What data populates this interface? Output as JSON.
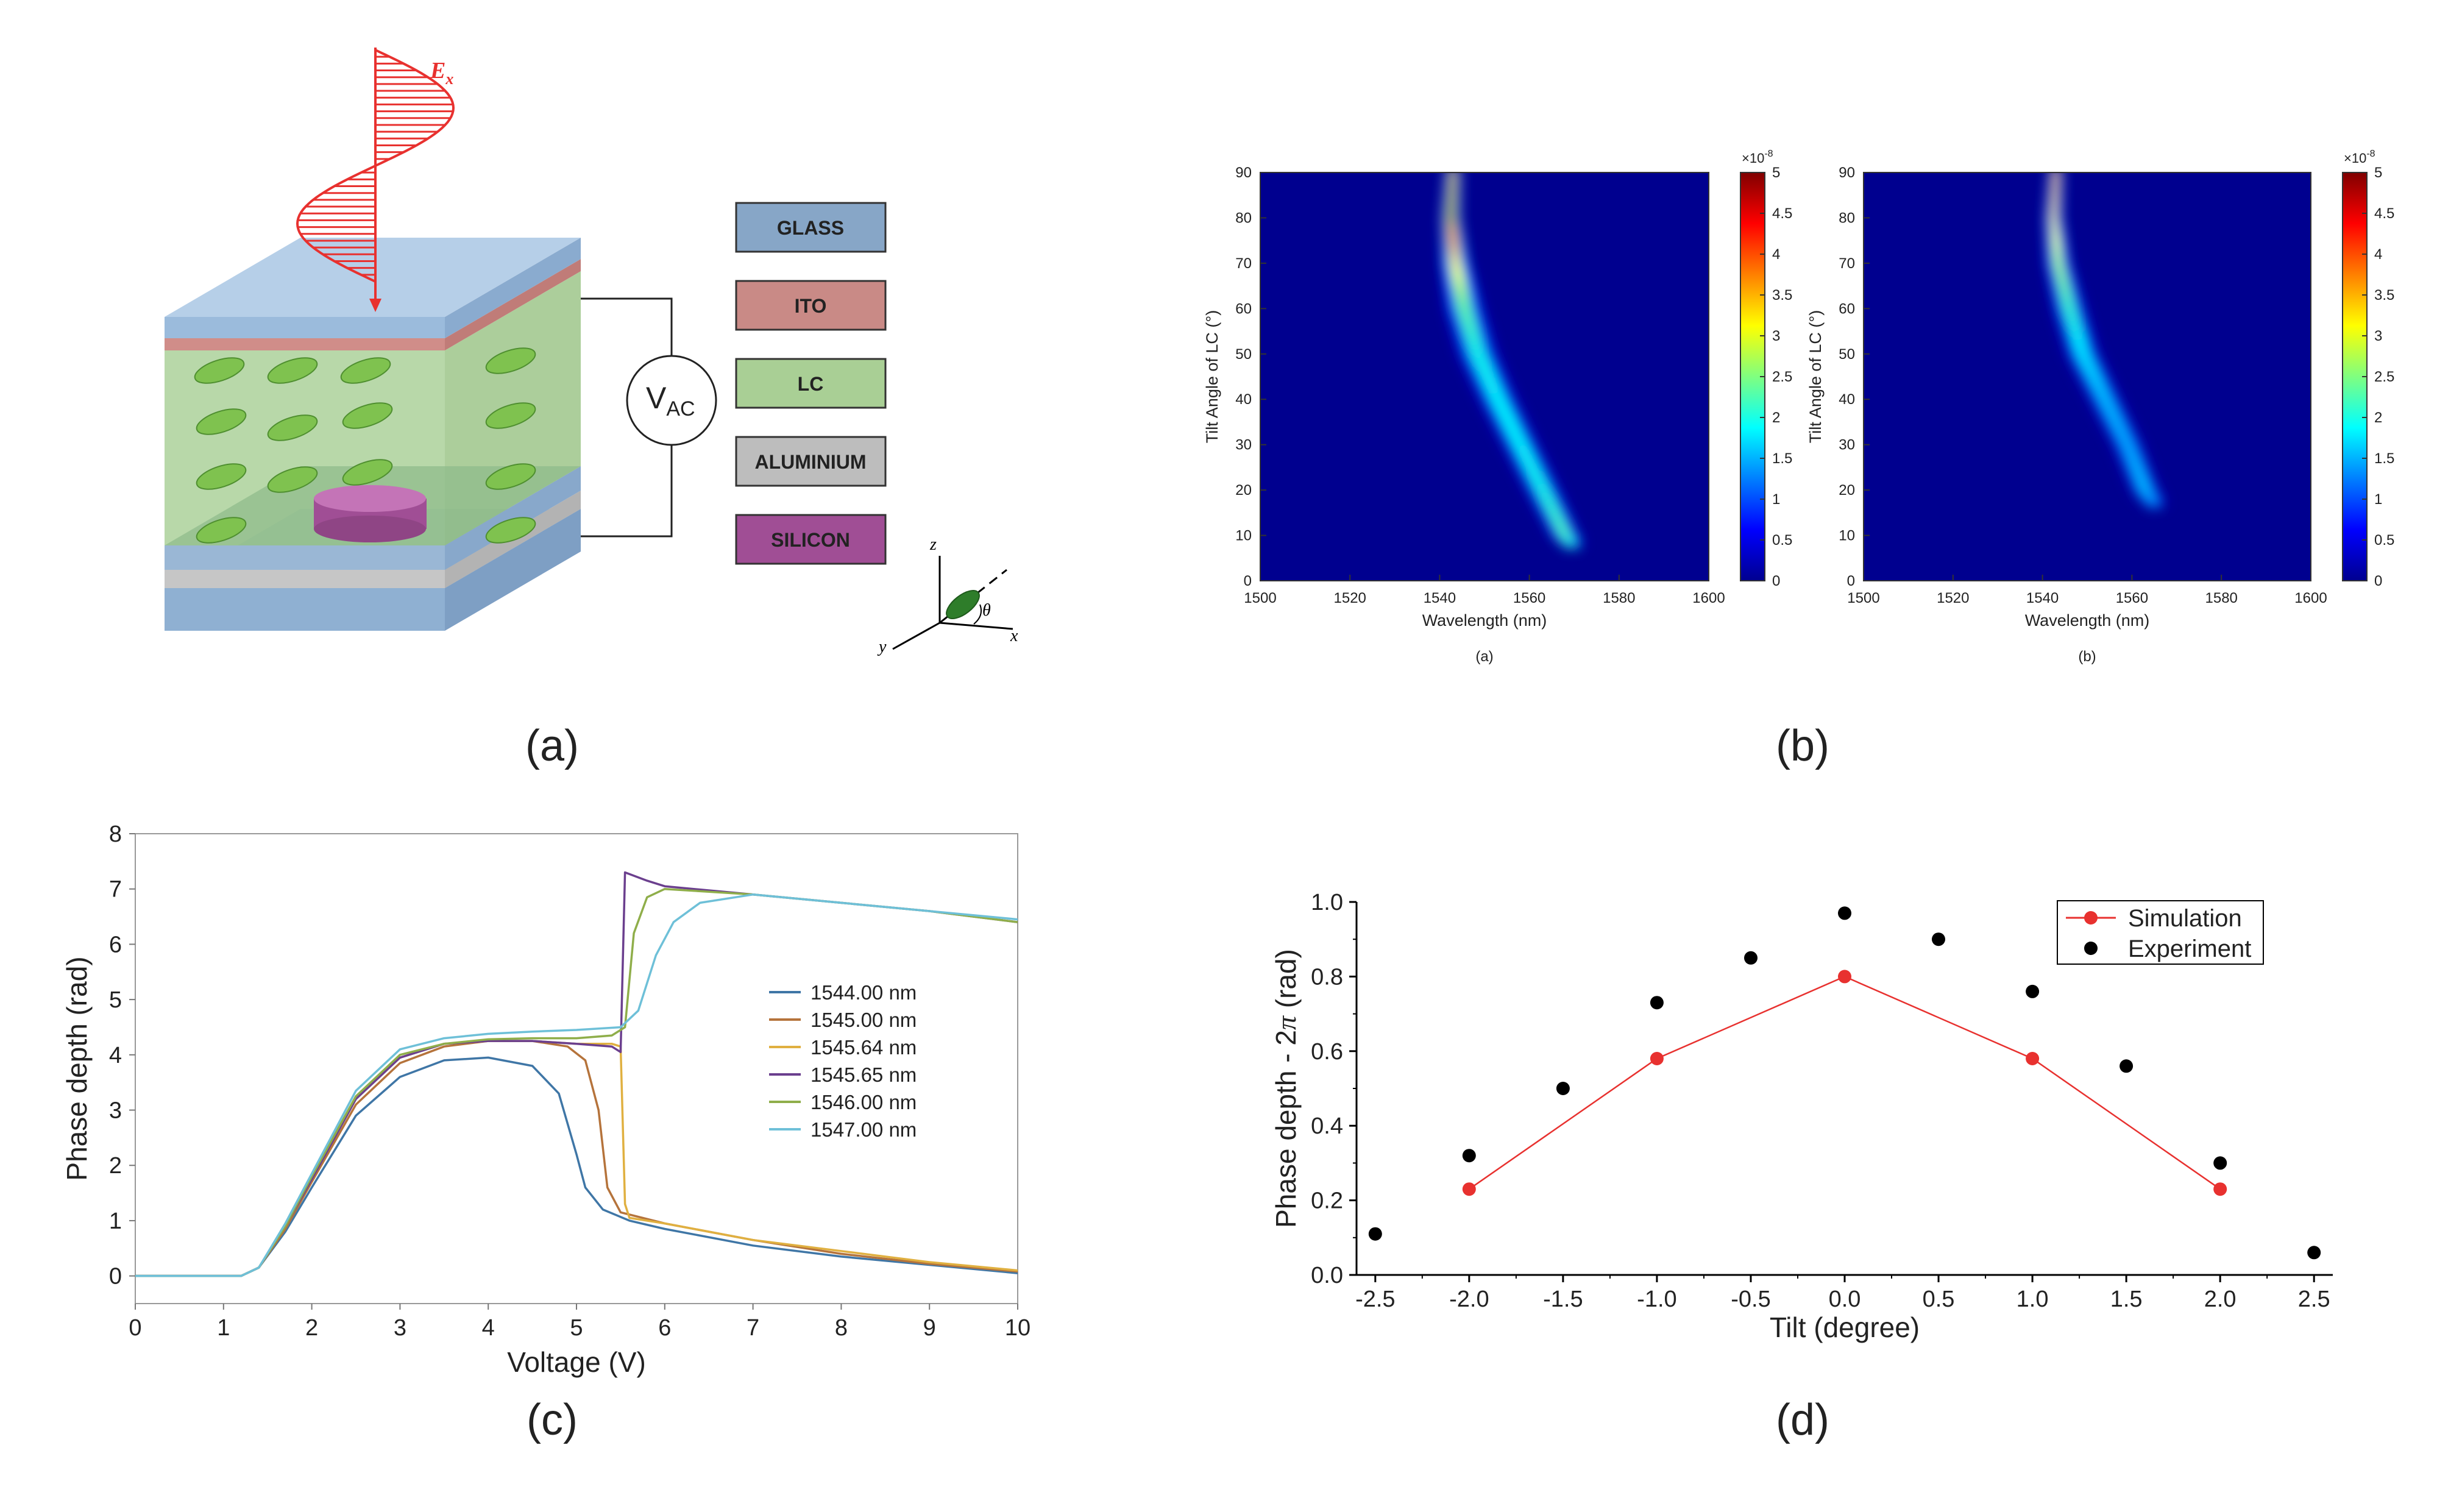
{
  "panel_labels": [
    "(a)",
    "(b)",
    "(c)",
    "(d)"
  ],
  "schematic": {
    "field_label": "E",
    "field_subscript": "x",
    "voltage_label": "V",
    "voltage_subscript": "AC",
    "legend": [
      {
        "label": "GLASS",
        "color": "#87a6c7"
      },
      {
        "label": "ITO",
        "color": "#c98a86"
      },
      {
        "label": "LC",
        "color": "#a9cf95"
      },
      {
        "label": "ALUMINIUM",
        "color": "#bdbdbd"
      },
      {
        "label": "SILICON",
        "color": "#a04e95"
      }
    ],
    "axes": {
      "z": "z",
      "x": "x",
      "y": "y",
      "theta": "θ"
    }
  },
  "chart_data": [
    {
      "id": "b-a",
      "type": "heatmap",
      "caption": "(a)",
      "xlabel": "Wavelength (nm)",
      "ylabel": "Tilt Angle of LC (°)",
      "xlim": [
        1500,
        1600
      ],
      "ylim": [
        0,
        90
      ],
      "xticks": [
        1500,
        1520,
        1540,
        1560,
        1580,
        1600
      ],
      "yticks": [
        0,
        10,
        20,
        30,
        40,
        50,
        60,
        70,
        80,
        90
      ],
      "colorbar": {
        "ticks": [
          "0",
          "0.5",
          "1",
          "1.5",
          "2",
          "2.5",
          "3",
          "3.5",
          "4",
          "4.5",
          "5"
        ],
        "multiplier_base": "×10",
        "multiplier_exp": "-8",
        "max": 5
      },
      "ridge": [
        {
          "y": 90,
          "x": 1543,
          "value": 4.6,
          "width": 1.8
        },
        {
          "y": 80,
          "x": 1542.5,
          "value": 4.9,
          "width": 2.2
        },
        {
          "y": 70,
          "x": 1543.5,
          "value": 3.4,
          "width": 3.2
        },
        {
          "y": 60,
          "x": 1545.5,
          "value": 2.4,
          "width": 4.2
        },
        {
          "y": 50,
          "x": 1548.5,
          "value": 2.0,
          "width": 4.4
        },
        {
          "y": 40,
          "x": 1553,
          "value": 1.9,
          "width": 4.2
        },
        {
          "y": 30,
          "x": 1558,
          "value": 1.9,
          "width": 4.0
        },
        {
          "y": 20,
          "x": 1563,
          "value": 2.0,
          "width": 3.8
        },
        {
          "y": 10,
          "x": 1568,
          "value": 2.3,
          "width": 3.2
        },
        {
          "y": 8,
          "x": 1569.5,
          "value": 2.0,
          "width": 2.6
        }
      ]
    },
    {
      "id": "b-b",
      "type": "heatmap",
      "caption": "(b)",
      "xlabel": "Wavelength (nm)",
      "ylabel": "Tilt Angle of LC (°)",
      "xlim": [
        1500,
        1600
      ],
      "ylim": [
        0,
        90
      ],
      "xticks": [
        1500,
        1520,
        1540,
        1560,
        1580,
        1600
      ],
      "yticks": [
        0,
        10,
        20,
        30,
        40,
        50,
        60,
        70,
        80,
        90
      ],
      "colorbar": {
        "ticks": [
          "0",
          "0.5",
          "1",
          "1.5",
          "2",
          "2.5",
          "3",
          "3.5",
          "4",
          "4.5",
          "5"
        ],
        "multiplier_base": "×10",
        "multiplier_exp": "-8",
        "max": 5
      },
      "ridge": [
        {
          "y": 90,
          "x": 1543,
          "value": 4.3,
          "width": 1.6
        },
        {
          "y": 80,
          "x": 1542.5,
          "value": 3.6,
          "width": 2.0
        },
        {
          "y": 70,
          "x": 1543.5,
          "value": 2.8,
          "width": 2.8
        },
        {
          "y": 60,
          "x": 1546,
          "value": 2.2,
          "width": 3.6
        },
        {
          "y": 50,
          "x": 1549,
          "value": 1.8,
          "width": 3.8
        },
        {
          "y": 40,
          "x": 1554,
          "value": 1.6,
          "width": 3.6
        },
        {
          "y": 30,
          "x": 1559,
          "value": 1.5,
          "width": 3.4
        },
        {
          "y": 20,
          "x": 1563,
          "value": 1.6,
          "width": 3.2
        },
        {
          "y": 17,
          "x": 1565,
          "value": 1.4,
          "width": 2.6
        }
      ]
    },
    {
      "id": "c",
      "type": "line",
      "caption": "(c)",
      "xlabel": "Voltage (V)",
      "ylabel": "Phase depth (rad)",
      "xlim": [
        0,
        10
      ],
      "ylim": [
        -0.5,
        8
      ],
      "xticks": [
        0,
        1,
        2,
        3,
        4,
        5,
        6,
        7,
        8,
        9,
        10
      ],
      "yticks": [
        0,
        1,
        2,
        3,
        4,
        5,
        6,
        7,
        8
      ],
      "series": [
        {
          "name": "1544.00 nm",
          "color": "#3f76a6",
          "points": [
            [
              0,
              0
            ],
            [
              1.2,
              0
            ],
            [
              1.4,
              0.15
            ],
            [
              1.7,
              0.8
            ],
            [
              2,
              1.6
            ],
            [
              2.5,
              2.9
            ],
            [
              3,
              3.6
            ],
            [
              3.5,
              3.9
            ],
            [
              4,
              3.95
            ],
            [
              4.5,
              3.8
            ],
            [
              4.8,
              3.3
            ],
            [
              5,
              2.2
            ],
            [
              5.1,
              1.6
            ],
            [
              5.3,
              1.2
            ],
            [
              5.6,
              1.0
            ],
            [
              6,
              0.85
            ],
            [
              7,
              0.55
            ],
            [
              8,
              0.35
            ],
            [
              9,
              0.2
            ],
            [
              10,
              0.05
            ]
          ]
        },
        {
          "name": "1545.00 nm",
          "color": "#b5733b",
          "points": [
            [
              0,
              0
            ],
            [
              1.2,
              0
            ],
            [
              1.4,
              0.15
            ],
            [
              1.7,
              0.85
            ],
            [
              2,
              1.7
            ],
            [
              2.5,
              3.1
            ],
            [
              3,
              3.85
            ],
            [
              3.5,
              4.15
            ],
            [
              4,
              4.25
            ],
            [
              4.5,
              4.25
            ],
            [
              4.9,
              4.15
            ],
            [
              5.1,
              3.9
            ],
            [
              5.25,
              3.0
            ],
            [
              5.35,
              1.6
            ],
            [
              5.5,
              1.15
            ],
            [
              6,
              0.95
            ],
            [
              7,
              0.65
            ],
            [
              8,
              0.4
            ],
            [
              9,
              0.22
            ],
            [
              10,
              0.08
            ]
          ]
        },
        {
          "name": "1545.64 nm",
          "color": "#e0b040",
          "points": [
            [
              0,
              0
            ],
            [
              1.2,
              0
            ],
            [
              1.4,
              0.15
            ],
            [
              1.7,
              0.9
            ],
            [
              2,
              1.75
            ],
            [
              2.5,
              3.2
            ],
            [
              3,
              3.95
            ],
            [
              3.5,
              4.2
            ],
            [
              4,
              4.25
            ],
            [
              4.5,
              4.25
            ],
            [
              5,
              4.2
            ],
            [
              5.4,
              4.2
            ],
            [
              5.5,
              4.15
            ],
            [
              5.55,
              1.3
            ],
            [
              5.6,
              1.05
            ],
            [
              6,
              0.95
            ],
            [
              7,
              0.65
            ],
            [
              8,
              0.45
            ],
            [
              9,
              0.25
            ],
            [
              10,
              0.1
            ]
          ]
        },
        {
          "name": "1545.65 nm",
          "color": "#6b3f8e",
          "points": [
            [
              0,
              0
            ],
            [
              1.2,
              0
            ],
            [
              1.4,
              0.15
            ],
            [
              1.7,
              0.9
            ],
            [
              2,
              1.75
            ],
            [
              2.5,
              3.2
            ],
            [
              3,
              3.95
            ],
            [
              3.5,
              4.2
            ],
            [
              4,
              4.25
            ],
            [
              4.5,
              4.25
            ],
            [
              5,
              4.2
            ],
            [
              5.4,
              4.15
            ],
            [
              5.5,
              4.05
            ],
            [
              5.55,
              7.3
            ],
            [
              5.8,
              7.15
            ],
            [
              6,
              7.05
            ],
            [
              7,
              6.9
            ],
            [
              8,
              6.75
            ],
            [
              9,
              6.6
            ],
            [
              10,
              6.4
            ]
          ]
        },
        {
          "name": "1546.00 nm",
          "color": "#8fae4a",
          "points": [
            [
              0,
              0
            ],
            [
              1.2,
              0
            ],
            [
              1.4,
              0.15
            ],
            [
              1.7,
              0.9
            ],
            [
              2,
              1.8
            ],
            [
              2.5,
              3.25
            ],
            [
              3,
              4.0
            ],
            [
              3.5,
              4.2
            ],
            [
              4,
              4.28
            ],
            [
              4.5,
              4.3
            ],
            [
              5,
              4.3
            ],
            [
              5.4,
              4.35
            ],
            [
              5.55,
              4.5
            ],
            [
              5.65,
              6.2
            ],
            [
              5.8,
              6.85
            ],
            [
              6,
              7.0
            ],
            [
              7,
              6.9
            ],
            [
              8,
              6.75
            ],
            [
              9,
              6.6
            ],
            [
              10,
              6.4
            ]
          ]
        },
        {
          "name": "1547.00 nm",
          "color": "#6ec0d8",
          "points": [
            [
              0,
              0
            ],
            [
              1.2,
              0
            ],
            [
              1.4,
              0.15
            ],
            [
              1.7,
              0.95
            ],
            [
              2,
              1.85
            ],
            [
              2.5,
              3.35
            ],
            [
              3,
              4.1
            ],
            [
              3.5,
              4.3
            ],
            [
              4,
              4.38
            ],
            [
              4.5,
              4.42
            ],
            [
              5,
              4.45
            ],
            [
              5.5,
              4.5
            ],
            [
              5.7,
              4.8
            ],
            [
              5.9,
              5.8
            ],
            [
              6.1,
              6.4
            ],
            [
              6.4,
              6.75
            ],
            [
              7,
              6.9
            ],
            [
              8,
              6.75
            ],
            [
              9,
              6.6
            ],
            [
              10,
              6.45
            ]
          ]
        }
      ]
    },
    {
      "id": "d",
      "type": "scatter",
      "caption": "(d)",
      "xlabel": "Tilt (degree)",
      "ylabel_prefix": "Phase depth - 2",
      "ylabel_pi": "π",
      "ylabel_suffix": " (rad)",
      "xlim": [
        -2.6,
        2.6
      ],
      "ylim": [
        0,
        1.0
      ],
      "xticks": [
        "-2.5",
        "-2.0",
        "-1.5",
        "-1.0",
        "-0.5",
        "0.0",
        "0.5",
        "1.0",
        "1.5",
        "2.0",
        "2.5"
      ],
      "yticks": [
        "0.0",
        "0.2",
        "0.4",
        "0.6",
        "0.8",
        "1.0"
      ],
      "legend_position": "top-right",
      "series": [
        {
          "name": "Simulation",
          "color": "#e8312f",
          "line": true,
          "x": [
            -2.0,
            -1.0,
            0.0,
            1.0,
            2.0
          ],
          "y": [
            0.23,
            0.58,
            0.8,
            0.58,
            0.23
          ]
        },
        {
          "name": "Experiment",
          "color": "#000000",
          "line": false,
          "x": [
            -2.5,
            -2.0,
            -1.5,
            -1.0,
            -0.5,
            0.0,
            0.5,
            1.0,
            1.5,
            2.0,
            2.5
          ],
          "y": [
            0.11,
            0.32,
            0.5,
            0.73,
            0.85,
            0.97,
            0.9,
            0.76,
            0.56,
            0.3,
            0.06
          ]
        }
      ]
    }
  ]
}
